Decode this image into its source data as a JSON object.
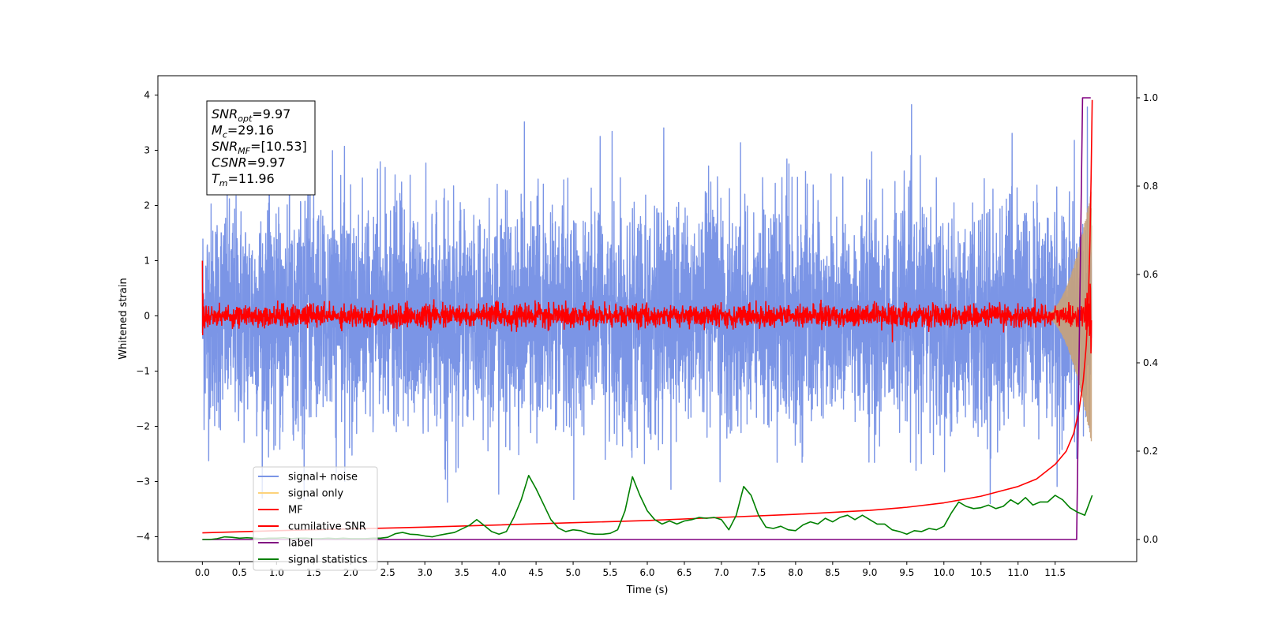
{
  "chart_data": {
    "type": "line",
    "xlabel": "Time (s)",
    "ylabel": "Whitened strain",
    "xlim": [
      -0.6,
      12.6
    ],
    "ylim": [
      -4.45,
      4.35
    ],
    "y2lim": [
      -0.05,
      1.05
    ],
    "x_ticks": [
      0.0,
      0.5,
      1.0,
      1.5,
      2.0,
      2.5,
      3.0,
      3.5,
      4.0,
      4.5,
      5.0,
      5.5,
      6.0,
      6.5,
      7.0,
      7.5,
      8.0,
      8.5,
      9.0,
      9.5,
      10.0,
      10.5,
      11.0,
      11.5
    ],
    "x_tick_labels": [
      "0.0",
      "0.5",
      "1.0",
      "1.5",
      "2.0",
      "2.5",
      "3.0",
      "3.5",
      "4.0",
      "4.5",
      "5.0",
      "5.5",
      "6.0",
      "6.5",
      "7.0",
      "7.5",
      "8.0",
      "8.5",
      "9.0",
      "9.5",
      "10.0",
      "10.5",
      "11.0",
      "11.5"
    ],
    "y_ticks": [
      4,
      3,
      2,
      1,
      0,
      -1,
      -2,
      -3,
      -4
    ],
    "y_tick_labels": [
      "4",
      "3",
      "2",
      "1",
      "0",
      "−1",
      "−2",
      "−3",
      "−4"
    ],
    "y2_ticks": [
      1.0,
      0.8,
      0.6,
      0.4,
      0.2,
      0.0
    ],
    "y2_tick_labels": [
      "1.0",
      "0.8",
      "0.6",
      "0.4",
      "0.2",
      "0.0"
    ],
    "annotation": [
      {
        "sym": "SNR",
        "sub": "opt",
        "val": "=9.97"
      },
      {
        "sym": "M",
        "sub": "c",
        "val": "=29.16"
      },
      {
        "sym": "SNR",
        "sub": "MF",
        "val": "=[10.53]"
      },
      {
        "sym": "CSNR",
        "sub": "",
        "val": "=9.97"
      },
      {
        "sym": "T",
        "sub": "m",
        "val": "=11.96"
      }
    ],
    "legend_position": "lower-left",
    "legend": [
      {
        "name": "signal+ noise",
        "color": "#7b95e6"
      },
      {
        "name": "signal only",
        "color": "#fdd27a"
      },
      {
        "name": "MF",
        "color": "#ff0000"
      },
      {
        "name": "cumilative SNR",
        "color": "#ff0000"
      },
      {
        "name": "label",
        "color": "#800080"
      },
      {
        "name": "signal statistics",
        "color": "#008000"
      }
    ],
    "series": [
      {
        "name": "signal+ noise",
        "axis": "left",
        "style": "noise band",
        "color": "#7b95e6",
        "x_range": [
          0.0,
          11.99
        ],
        "mean": 0.0,
        "std": 1.0,
        "max": 3.95,
        "min": -3.45
      },
      {
        "name": "signal only",
        "axis": "left",
        "style": "chirp envelope",
        "color": "#c8a27a",
        "x_start": 11.3,
        "x_end": 11.99,
        "peak_amplitude": 2.3
      },
      {
        "name": "MF",
        "axis": "left",
        "style": "noise band",
        "color": "#ff0000",
        "x_range": [
          0.0,
          11.99
        ],
        "std": 0.1,
        "start_value": 1.0
      },
      {
        "name": "cumilative SNR",
        "axis": "right",
        "color": "#ff0000",
        "x": [
          0.0,
          1.0,
          2.0,
          3.0,
          4.0,
          5.0,
          6.0,
          7.0,
          8.0,
          9.0,
          9.5,
          10.0,
          10.5,
          11.0,
          11.25,
          11.5,
          11.65,
          11.75,
          11.82,
          11.88,
          11.92,
          11.95,
          11.97,
          11.985,
          12.0
        ],
        "y": [
          0.015,
          0.02,
          0.024,
          0.028,
          0.033,
          0.038,
          0.043,
          0.05,
          0.057,
          0.066,
          0.073,
          0.083,
          0.098,
          0.12,
          0.137,
          0.17,
          0.2,
          0.24,
          0.29,
          0.36,
          0.44,
          0.55,
          0.68,
          0.82,
          0.995
        ]
      },
      {
        "name": "label",
        "axis": "right",
        "color": "#800080",
        "x": [
          0.0,
          11.79,
          11.79,
          11.83,
          11.87,
          11.98
        ],
        "y": [
          0.0,
          0.0,
          0.0,
          0.5,
          1.0,
          1.0
        ]
      },
      {
        "name": "signal statistics",
        "axis": "right",
        "color": "#008000",
        "x": [
          0.0,
          0.1,
          0.2,
          0.3,
          0.4,
          0.5,
          0.6,
          0.7,
          0.8,
          0.9,
          1.0,
          1.1,
          1.2,
          1.3,
          1.4,
          1.5,
          1.6,
          1.7,
          1.8,
          1.9,
          2.0,
          2.1,
          2.2,
          2.3,
          2.4,
          2.5,
          2.6,
          2.7,
          2.8,
          2.9,
          3.0,
          3.1,
          3.2,
          3.3,
          3.4,
          3.5,
          3.6,
          3.7,
          3.8,
          3.9,
          4.0,
          4.1,
          4.2,
          4.3,
          4.4,
          4.5,
          4.6,
          4.7,
          4.8,
          4.9,
          5.0,
          5.1,
          5.2,
          5.3,
          5.4,
          5.5,
          5.6,
          5.7,
          5.8,
          5.9,
          6.0,
          6.1,
          6.2,
          6.3,
          6.4,
          6.5,
          6.6,
          6.7,
          6.8,
          6.9,
          7.0,
          7.1,
          7.2,
          7.3,
          7.4,
          7.5,
          7.6,
          7.7,
          7.8,
          7.9,
          8.0,
          8.1,
          8.2,
          8.3,
          8.4,
          8.5,
          8.6,
          8.7,
          8.8,
          8.9,
          9.0,
          9.1,
          9.2,
          9.3,
          9.4,
          9.5,
          9.6,
          9.7,
          9.8,
          9.9,
          10.0,
          10.1,
          10.2,
          10.3,
          10.4,
          10.5,
          10.6,
          10.7,
          10.8,
          10.9,
          11.0,
          11.1,
          11.2,
          11.3,
          11.4,
          11.5,
          11.6,
          11.7,
          11.8,
          11.9,
          12.0
        ],
        "y": [
          0.0,
          0.0,
          0.002,
          0.006,
          0.005,
          0.003,
          0.004,
          0.003,
          0.002,
          0.003,
          0.003,
          0.004,
          0.002,
          0.003,
          0.003,
          0.002,
          0.002,
          0.003,
          0.002,
          0.003,
          0.002,
          0.002,
          0.002,
          0.003,
          0.003,
          0.005,
          0.013,
          0.016,
          0.012,
          0.011,
          0.008,
          0.006,
          0.01,
          0.013,
          0.016,
          0.024,
          0.032,
          0.045,
          0.032,
          0.018,
          0.012,
          0.018,
          0.05,
          0.09,
          0.145,
          0.115,
          0.08,
          0.045,
          0.026,
          0.018,
          0.022,
          0.02,
          0.014,
          0.012,
          0.012,
          0.014,
          0.022,
          0.065,
          0.142,
          0.1,
          0.065,
          0.045,
          0.035,
          0.042,
          0.035,
          0.042,
          0.045,
          0.05,
          0.048,
          0.05,
          0.045,
          0.022,
          0.055,
          0.12,
          0.1,
          0.055,
          0.028,
          0.025,
          0.03,
          0.022,
          0.02,
          0.033,
          0.04,
          0.035,
          0.048,
          0.04,
          0.05,
          0.055,
          0.045,
          0.055,
          0.045,
          0.035,
          0.035,
          0.022,
          0.018,
          0.012,
          0.02,
          0.018,
          0.025,
          0.022,
          0.03,
          0.06,
          0.085,
          0.075,
          0.07,
          0.072,
          0.078,
          0.07,
          0.075,
          0.09,
          0.08,
          0.095,
          0.078,
          0.085,
          0.085,
          0.1,
          0.09,
          0.072,
          0.062,
          0.055,
          0.1
        ]
      }
    ]
  }
}
